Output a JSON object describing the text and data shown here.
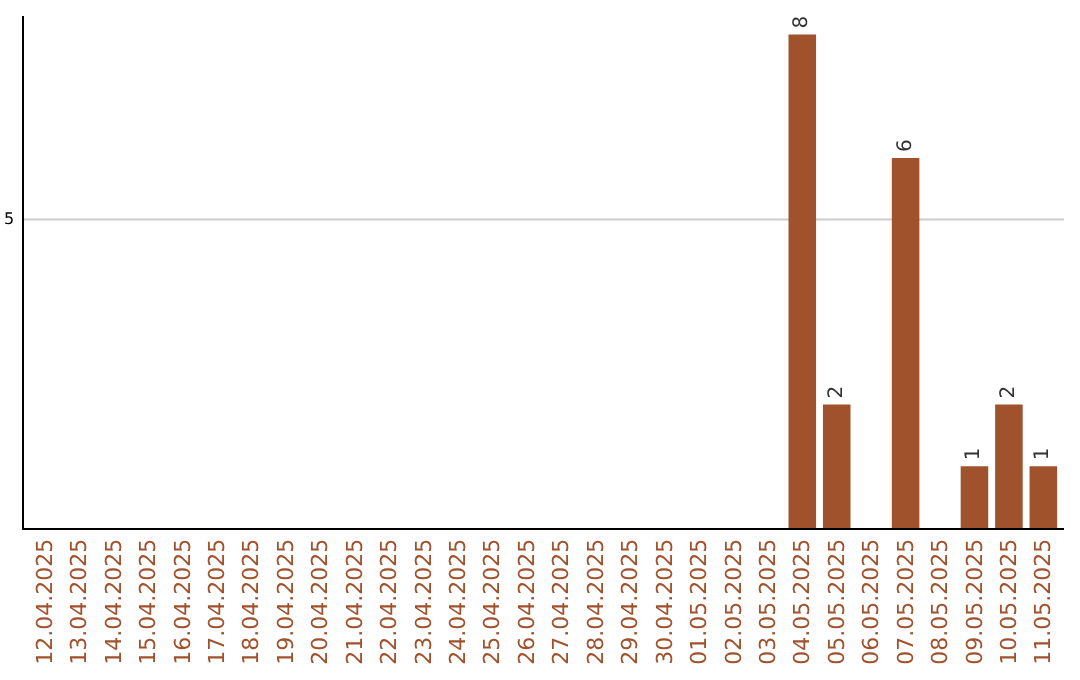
{
  "chart_data": {
    "type": "bar",
    "categories": [
      "12.04.2025",
      "13.04.2025",
      "14.04.2025",
      "15.04.2025",
      "16.04.2025",
      "17.04.2025",
      "18.04.2025",
      "19.04.2025",
      "20.04.2025",
      "21.04.2025",
      "22.04.2025",
      "23.04.2025",
      "24.04.2025",
      "25.04.2025",
      "26.04.2025",
      "27.04.2025",
      "28.04.2025",
      "29.04.2025",
      "30.04.2025",
      "01.05.2025",
      "02.05.2025",
      "03.05.2025",
      "04.05.2025",
      "05.05.2025",
      "06.05.2025",
      "07.05.2025",
      "08.05.2025",
      "09.05.2025",
      "10.05.2025",
      "11.05.2025"
    ],
    "values": [
      null,
      null,
      null,
      null,
      null,
      null,
      null,
      null,
      null,
      null,
      null,
      null,
      null,
      null,
      null,
      null,
      null,
      null,
      null,
      null,
      null,
      null,
      8,
      2,
      null,
      6,
      null,
      1,
      2,
      1
    ],
    "data_labels": true,
    "color": "#a0522d",
    "ylim": [
      0,
      8.3
    ],
    "ref_lines": [
      {
        "axis": "y",
        "value": 5,
        "label": "5",
        "color": "#cccccc"
      }
    ],
    "legend": false
  }
}
